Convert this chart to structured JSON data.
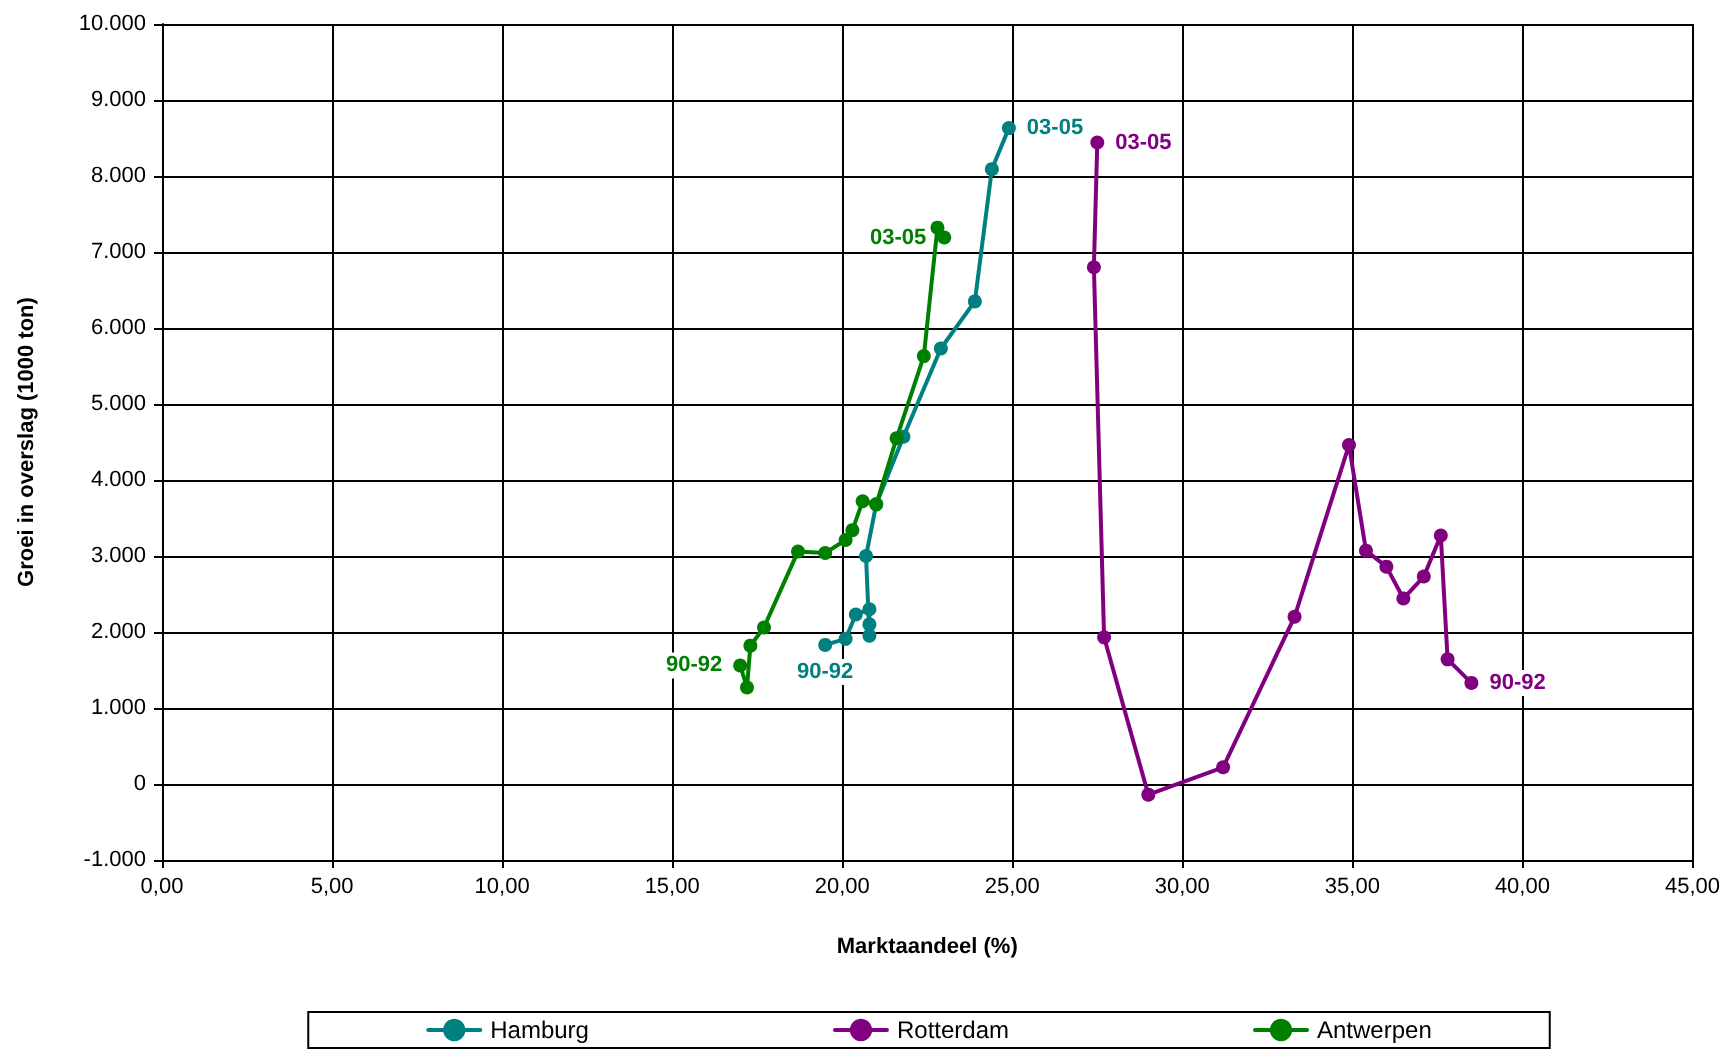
{
  "chart_data": {
    "type": "line",
    "xlabel": "Marktaandeel (%)",
    "ylabel": "Groei in overslag (1000 ton)",
    "xlim": [
      0,
      45
    ],
    "xticks": [
      {
        "value": 0,
        "label": "0,00"
      },
      {
        "value": 5,
        "label": "5,00"
      },
      {
        "value": 10,
        "label": "10,00"
      },
      {
        "value": 15,
        "label": "15,00"
      },
      {
        "value": 20,
        "label": "20,00"
      },
      {
        "value": 25,
        "label": "25,00"
      },
      {
        "value": 30,
        "label": "30,00"
      },
      {
        "value": 35,
        "label": "35,00"
      },
      {
        "value": 40,
        "label": "40,00"
      },
      {
        "value": 45,
        "label": "45,00"
      }
    ],
    "ylim": [
      -1000,
      10000
    ],
    "yticks": [
      {
        "value": -1000,
        "label": "-1.000"
      },
      0,
      {
        "value": 1000,
        "label": "1.000"
      },
      {
        "value": 2000,
        "label": "2.000"
      },
      {
        "value": 3000,
        "label": "3.000"
      },
      {
        "value": 4000,
        "label": "4.000"
      },
      {
        "value": 5000,
        "label": "5.000"
      },
      {
        "value": 6000,
        "label": "6.000"
      },
      {
        "value": 7000,
        "label": "7.000"
      },
      {
        "value": 8000,
        "label": "8.000"
      },
      {
        "value": 9000,
        "label": "9.000"
      },
      {
        "value": 10000,
        "label": "10.000"
      }
    ],
    "grid": true,
    "legend": "bottom",
    "marker": "circle",
    "line_style": "solid",
    "series": [
      {
        "name": "Hamburg",
        "color": "#008080",
        "x": [
          19.5,
          20.1,
          20.4,
          20.8,
          20.8,
          20.8,
          20.7,
          21.0,
          21.8,
          22.9,
          23.9,
          24.4,
          24.9
        ],
        "values": [
          1830,
          1910,
          2230,
          2300,
          2100,
          1950,
          3000,
          3680,
          4570,
          5730,
          6350,
          8090,
          8630
        ]
      },
      {
        "name": "Rotterdam",
        "color": "#800080",
        "x": [
          38.5,
          37.8,
          37.6,
          37.1,
          36.5,
          36.0,
          35.4,
          34.9,
          33.3,
          31.2,
          29.0,
          27.7,
          27.4,
          27.5
        ],
        "values": [
          1330,
          1640,
          3270,
          2730,
          2440,
          2860,
          3070,
          4460,
          2200,
          220,
          -140,
          1930,
          6800,
          8440
        ]
      },
      {
        "name": "Antwerpen",
        "color": "#008000",
        "x": [
          17.0,
          17.2,
          17.3,
          17.7,
          18.7,
          19.5,
          20.1,
          20.3,
          20.6,
          21.0,
          21.6,
          22.4,
          22.8,
          23.0
        ],
        "values": [
          1560,
          1270,
          1820,
          2060,
          3060,
          3040,
          3210,
          3340,
          3720,
          3680,
          4550,
          5630,
          7320,
          7190
        ]
      }
    ],
    "annotations": [
      {
        "text": "03-05",
        "x": 24.9,
        "y": 8630
      },
      {
        "text": "90-92",
        "x": 19.5,
        "y": 1830
      },
      {
        "text": "03-05",
        "x": 27.5,
        "y": 8440
      },
      {
        "text": "90-92",
        "x": 38.5,
        "y": 1330
      },
      {
        "text": "03-05",
        "x": 23.0,
        "y": 7190
      },
      {
        "text": "90-92",
        "x": 17.0,
        "y": 1560
      }
    ]
  }
}
